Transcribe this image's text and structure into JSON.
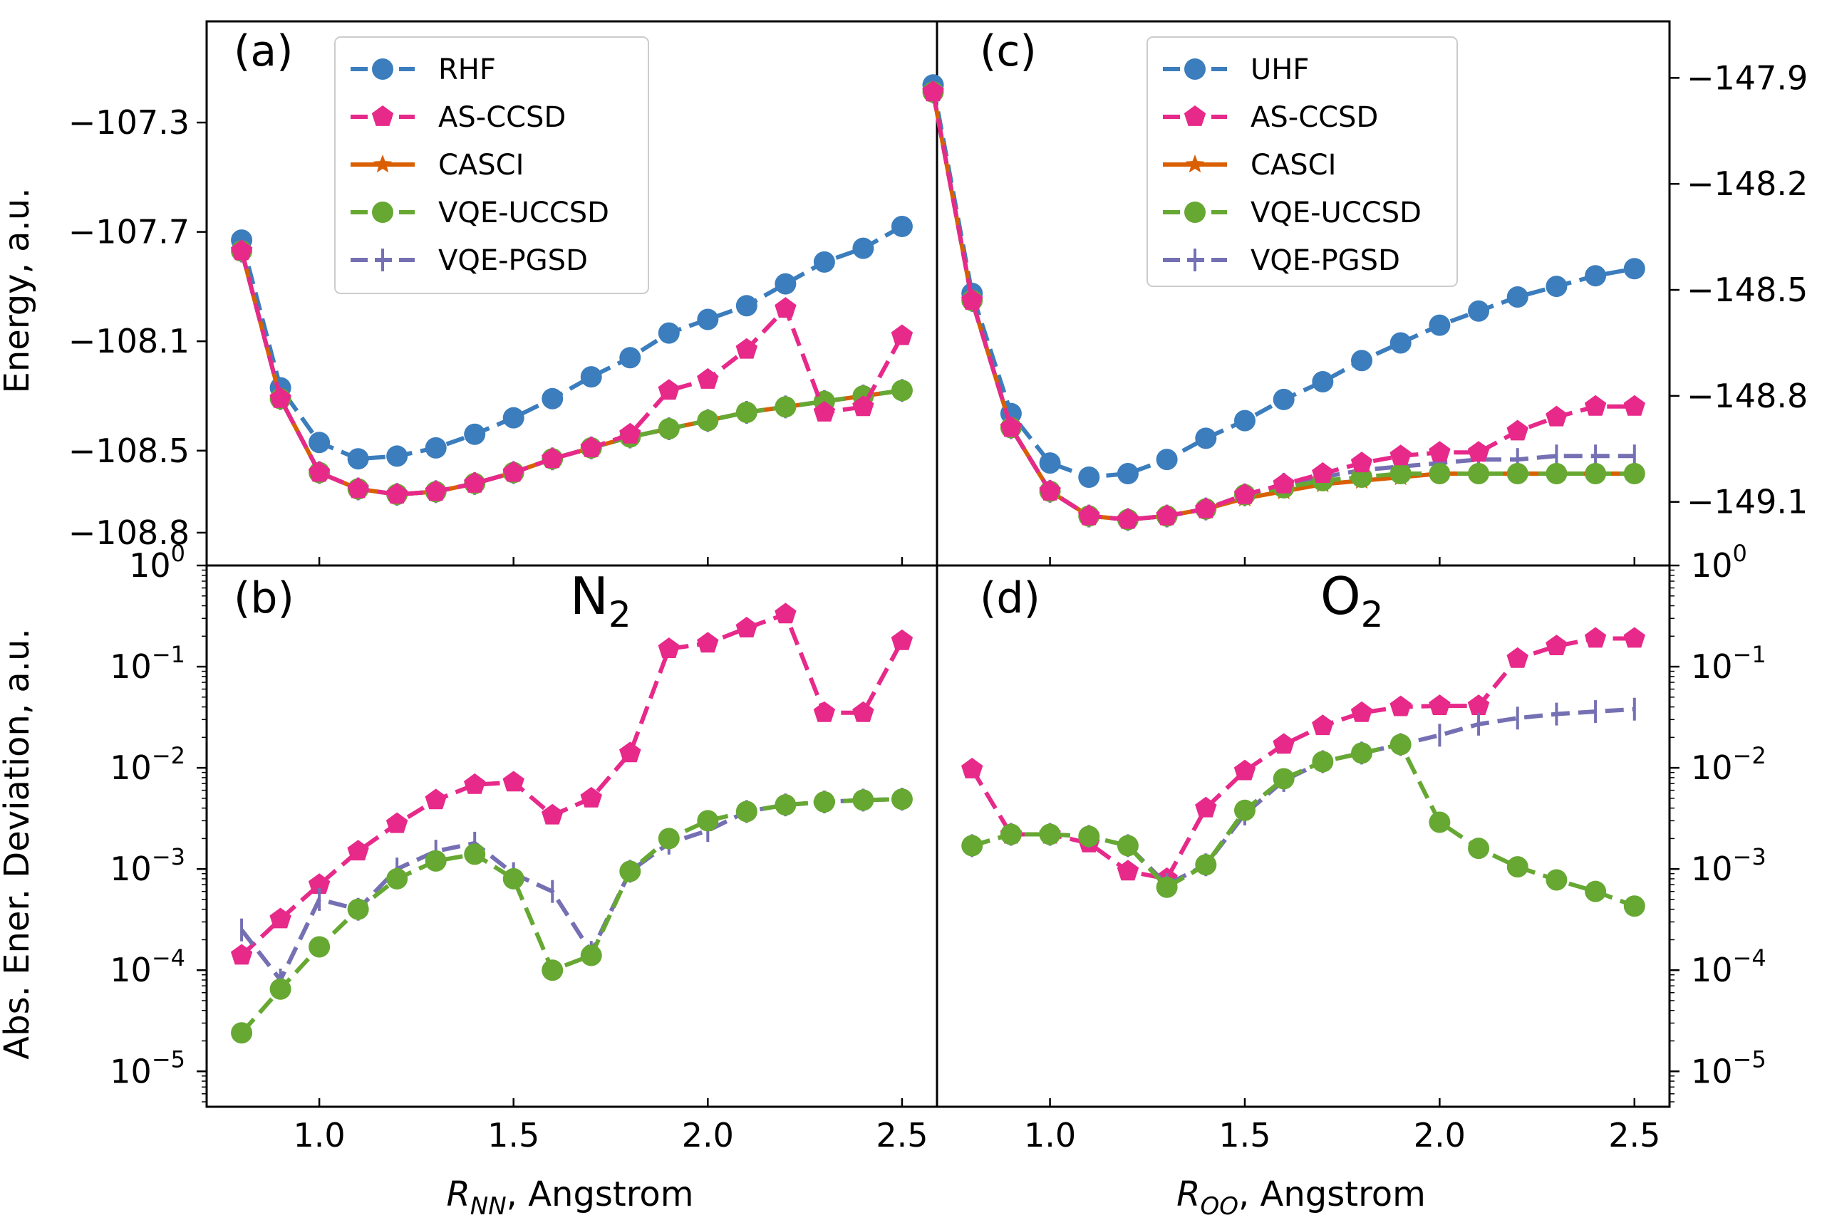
{
  "axis_labels": {
    "energy": "Energy, a.u.",
    "deviation": "Abs. Ener. Deviation, a.u.",
    "x_left_main": "R",
    "x_left_sub": "NN",
    "x_left_unit": ", Angstrom",
    "x_right_main": "R",
    "x_right_sub": "OO",
    "x_right_unit": ", Angstrom"
  },
  "panel_labels": {
    "a": "(a)",
    "b": "(b)",
    "c": "(c)",
    "d": "(d)"
  },
  "molecules": {
    "left_main": "N",
    "left_sub": "2",
    "right_main": "O",
    "right_sub": "2"
  },
  "series_style": {
    "RHF": {
      "color": "#3b7dbd",
      "dash": "26 12",
      "marker": "circle"
    },
    "UHF": {
      "color": "#3b7dbd",
      "dash": "26 12",
      "marker": "circle"
    },
    "AS-CCSD": {
      "color": "#e7298a",
      "dash": "26 12",
      "marker": "pentagon"
    },
    "CASCI": {
      "color": "#d95f02",
      "dash": "",
      "marker": "star"
    },
    "VQE-UCCSD": {
      "color": "#66a832",
      "dash": "26 12",
      "marker": "circle"
    },
    "VQE-PGSD": {
      "color": "#7570b3",
      "dash": "26 12",
      "marker": "tick"
    }
  },
  "chart_data": [
    {
      "id": "a",
      "type": "line",
      "title": "(a)",
      "xlabel": "",
      "ylabel": "Energy, a.u.",
      "xlim": [
        0.71,
        2.59
      ],
      "ylim": [
        -108.92,
        -106.93
      ],
      "x_ticks": [
        1.0,
        1.5,
        2.0,
        2.5
      ],
      "x_tick_labels": [],
      "y_ticks": [
        -107.3,
        -107.7,
        -108.1,
        -108.5,
        -108.8
      ],
      "y_tick_labels": [
        "−107.3",
        "−107.7",
        "−108.1",
        "−108.5",
        "−108.8"
      ],
      "y_side": "left",
      "legend": [
        "RHF",
        "AS-CCSD",
        "CASCI",
        "VQE-UCCSD",
        "VQE-PGSD"
      ],
      "x": [
        0.8,
        0.9,
        1.0,
        1.1,
        1.2,
        1.3,
        1.4,
        1.5,
        1.6,
        1.7,
        1.8,
        1.9,
        2.0,
        2.1,
        2.2,
        2.3,
        2.4,
        2.5
      ],
      "series": [
        {
          "name": "RHF",
          "values": [
            -107.73,
            -108.27,
            -108.47,
            -108.53,
            -108.52,
            -108.49,
            -108.44,
            -108.38,
            -108.31,
            -108.23,
            -108.16,
            -108.07,
            -108.02,
            -107.97,
            -107.89,
            -107.81,
            -107.76,
            -107.68
          ]
        },
        {
          "name": "CASCI",
          "values": [
            -107.77,
            -108.31,
            -108.58,
            -108.64,
            -108.66,
            -108.65,
            -108.62,
            -108.58,
            -108.53,
            -108.49,
            -108.45,
            -108.42,
            -108.39,
            -108.36,
            -108.34,
            -108.32,
            -108.3,
            -108.28
          ]
        },
        {
          "name": "VQE-PGSD",
          "values": [
            -107.77,
            -108.31,
            -108.58,
            -108.64,
            -108.66,
            -108.65,
            -108.62,
            -108.58,
            -108.53,
            -108.49,
            -108.45,
            -108.42,
            -108.39,
            -108.36,
            -108.34,
            -108.32,
            -108.3,
            -108.28
          ]
        },
        {
          "name": "VQE-UCCSD",
          "values": [
            -107.77,
            -108.31,
            -108.58,
            -108.64,
            -108.66,
            -108.65,
            -108.62,
            -108.58,
            -108.53,
            -108.49,
            -108.45,
            -108.42,
            -108.39,
            -108.36,
            -108.34,
            -108.32,
            -108.3,
            -108.28
          ]
        },
        {
          "name": "AS-CCSD",
          "values": [
            -107.77,
            -108.31,
            -108.58,
            -108.64,
            -108.66,
            -108.65,
            -108.62,
            -108.58,
            -108.53,
            -108.49,
            -108.44,
            -108.28,
            -108.24,
            -108.13,
            -107.98,
            -108.36,
            -108.34,
            -108.08
          ]
        }
      ]
    },
    {
      "id": "c",
      "type": "line",
      "title": "(c)",
      "xlabel": "",
      "ylabel": "",
      "xlim": [
        0.71,
        2.59
      ],
      "ylim": [
        -149.28,
        -147.74
      ],
      "x_ticks": [
        1.0,
        1.5,
        2.0,
        2.5
      ],
      "x_tick_labels": [],
      "y_ticks": [
        -147.9,
        -148.2,
        -148.5,
        -148.8,
        -149.1
      ],
      "y_tick_labels": [
        "−147.9",
        "−148.2",
        "−148.5",
        "−148.8",
        "−149.1"
      ],
      "y_side": "right",
      "legend": [
        "UHF",
        "AS-CCSD",
        "CASCI",
        "VQE-UCCSD",
        "VQE-PGSD"
      ],
      "x": [
        0.7,
        0.8,
        0.9,
        1.0,
        1.1,
        1.2,
        1.3,
        1.4,
        1.5,
        1.6,
        1.7,
        1.8,
        1.9,
        2.0,
        2.1,
        2.2,
        2.3,
        2.4,
        2.5
      ],
      "series": [
        {
          "name": "UHF",
          "values": [
            -147.92,
            -148.51,
            -148.85,
            -148.99,
            -149.03,
            -149.02,
            -148.98,
            -148.92,
            -148.87,
            -148.81,
            -148.76,
            -148.7,
            -148.65,
            -148.6,
            -148.56,
            -148.52,
            -148.49,
            -148.46,
            -148.44
          ]
        },
        {
          "name": "CASCI",
          "values": [
            -147.94,
            -148.53,
            -148.89,
            -149.07,
            -149.14,
            -149.15,
            -149.14,
            -149.12,
            -149.09,
            -149.07,
            -149.05,
            -149.04,
            -149.03,
            -149.02,
            -149.02,
            -149.02,
            -149.02,
            -149.02,
            -149.02
          ]
        },
        {
          "name": "VQE-PGSD",
          "values": [
            -147.94,
            -148.53,
            -148.89,
            -149.07,
            -149.14,
            -149.15,
            -149.14,
            -149.12,
            -149.08,
            -149.05,
            -149.03,
            -149.01,
            -149.0,
            -148.99,
            -148.98,
            -148.98,
            -148.97,
            -148.97,
            -148.97
          ]
        },
        {
          "name": "VQE-UCCSD",
          "values": [
            -147.94,
            -148.53,
            -148.89,
            -149.07,
            -149.14,
            -149.15,
            -149.14,
            -149.12,
            -149.08,
            -149.06,
            -149.04,
            -149.03,
            -149.02,
            -149.02,
            -149.02,
            -149.02,
            -149.02,
            -149.02,
            -149.02
          ]
        },
        {
          "name": "AS-CCSD",
          "values": [
            -147.94,
            -148.53,
            -148.89,
            -149.07,
            -149.14,
            -149.15,
            -149.14,
            -149.12,
            -149.08,
            -149.05,
            -149.02,
            -148.99,
            -148.97,
            -148.96,
            -148.96,
            -148.9,
            -148.86,
            -148.83,
            -148.83
          ]
        }
      ]
    },
    {
      "id": "b",
      "type": "line",
      "title": "(b)",
      "xlabel": "R_NN, Angstrom",
      "ylabel": "Abs. Ener. Deviation, a.u.",
      "yscale": "log",
      "xlim": [
        0.71,
        2.59
      ],
      "ylim_log10": [
        -5.35,
        0.0
      ],
      "x_ticks": [
        1.0,
        1.5,
        2.0,
        2.5
      ],
      "x_tick_labels": [
        "1.0",
        "1.5",
        "2.0",
        "2.5"
      ],
      "y_ticks_log10": [
        0,
        -1,
        -2,
        -3,
        -4,
        -5
      ],
      "y_tick_labels": [
        "0",
        "−1",
        "−2",
        "−3",
        "−4",
        "−5"
      ],
      "y_tick_base": "10",
      "y_side": "left",
      "x": [
        0.8,
        0.9,
        1.0,
        1.1,
        1.2,
        1.3,
        1.4,
        1.5,
        1.6,
        1.7,
        1.8,
        1.9,
        2.0,
        2.1,
        2.2,
        2.3,
        2.4,
        2.5
      ],
      "series": [
        {
          "name": "AS-CCSD",
          "values": [
            0.00014,
            0.00032,
            0.0007,
            0.0015,
            0.0028,
            0.0048,
            0.0068,
            0.0072,
            0.0034,
            0.005,
            0.014,
            0.15,
            0.17,
            0.24,
            0.33,
            0.035,
            0.035,
            0.18
          ]
        },
        {
          "name": "VQE-PGSD",
          "values": [
            0.00025,
            8e-05,
            0.0005,
            0.0004,
            0.001,
            0.0015,
            0.0018,
            0.0009,
            0.0006,
            0.00015,
            0.00095,
            0.0018,
            0.0024,
            0.0037,
            0.0043,
            0.0046,
            0.0048,
            0.0049
          ]
        },
        {
          "name": "VQE-UCCSD",
          "values": [
            2.4e-05,
            6.5e-05,
            0.00017,
            0.0004,
            0.0008,
            0.0012,
            0.0014,
            0.0008,
            0.0001,
            0.00014,
            0.00095,
            0.002,
            0.003,
            0.0037,
            0.0043,
            0.0046,
            0.0048,
            0.0049
          ]
        }
      ]
    },
    {
      "id": "d",
      "type": "line",
      "title": "(d)",
      "xlabel": "R_OO, Angstrom",
      "ylabel": "",
      "yscale": "log",
      "xlim": [
        0.71,
        2.59
      ],
      "ylim_log10": [
        -5.35,
        0.0
      ],
      "x_ticks": [
        1.0,
        1.5,
        2.0,
        2.5
      ],
      "x_tick_labels": [
        "1.0",
        "1.5",
        "2.0",
        "2.5"
      ],
      "y_ticks_log10": [
        0,
        -1,
        -2,
        -3,
        -4,
        -5
      ],
      "y_tick_labels": [
        "0",
        "−1",
        "−2",
        "−3",
        "−4",
        "−5"
      ],
      "y_tick_base": "10",
      "y_side": "right",
      "x": [
        0.8,
        0.9,
        1.0,
        1.1,
        1.2,
        1.3,
        1.4,
        1.5,
        1.6,
        1.7,
        1.8,
        1.9,
        2.0,
        2.1,
        2.2,
        2.3,
        2.4,
        2.5
      ],
      "series": [
        {
          "name": "AS-CCSD",
          "values": [
            0.0097,
            0.0022,
            0.0022,
            0.0018,
            0.00095,
            0.0008,
            0.004,
            0.0093,
            0.017,
            0.026,
            0.035,
            0.04,
            0.041,
            0.041,
            0.12,
            0.16,
            0.19,
            0.19
          ]
        },
        {
          "name": "VQE-PGSD",
          "values": [
            0.0017,
            0.0022,
            0.0022,
            0.0021,
            0.0017,
            0.0007,
            0.0011,
            0.0035,
            0.0075,
            0.0115,
            0.014,
            0.017,
            0.021,
            0.027,
            0.031,
            0.034,
            0.036,
            0.038
          ]
        },
        {
          "name": "VQE-UCCSD",
          "values": [
            0.0017,
            0.0022,
            0.0022,
            0.0021,
            0.0017,
            0.00066,
            0.0011,
            0.0038,
            0.0078,
            0.0115,
            0.014,
            0.017,
            0.0029,
            0.0016,
            0.00105,
            0.00078,
            0.0006,
            0.00043
          ]
        }
      ]
    }
  ]
}
